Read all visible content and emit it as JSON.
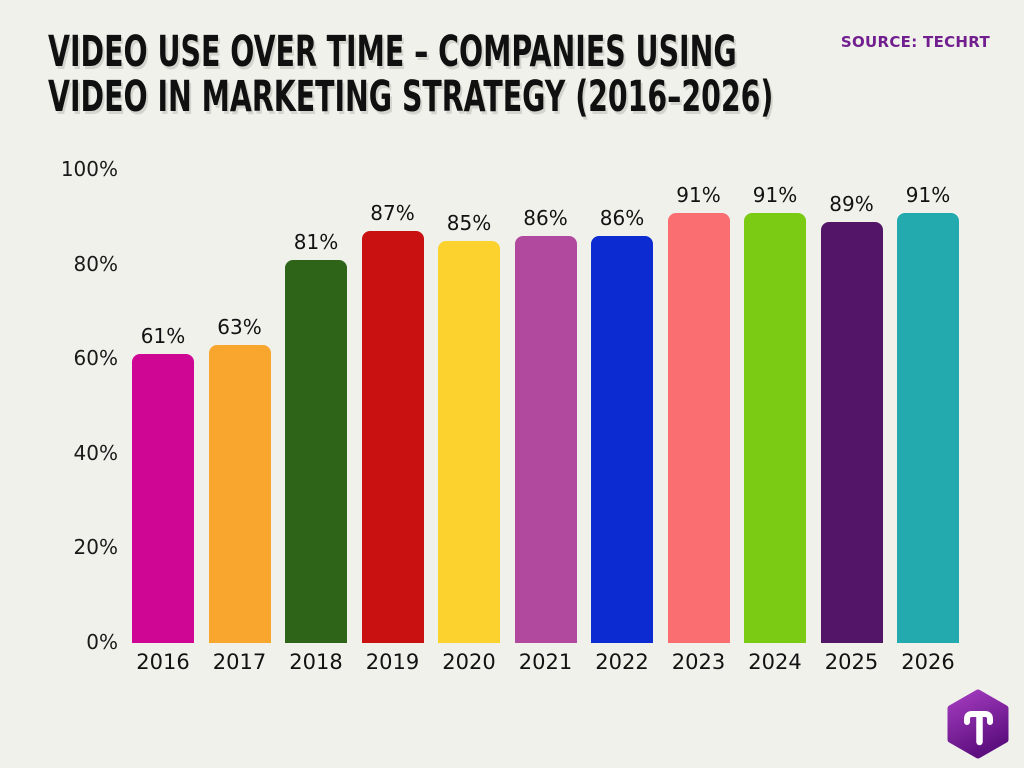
{
  "page": {
    "background": "#f1f1ec"
  },
  "header": {
    "title_line1": "VIDEO USE OVER TIME – COMPANIES USING",
    "title_line2": "VIDEO IN MARKETING STRATEGY (2016–2026)",
    "source": "SOURCE: TECHRT",
    "source_color": "#711f8f"
  },
  "chart_data": {
    "type": "bar",
    "title": "Video Use Over Time – Companies Using Video in Marketing Strategy (2016–2026)",
    "categories": [
      "2016",
      "2017",
      "2018",
      "2019",
      "2020",
      "2021",
      "2022",
      "2023",
      "2024",
      "2025",
      "2026"
    ],
    "values": [
      61,
      63,
      81,
      87,
      85,
      86,
      86,
      91,
      91,
      89,
      91
    ],
    "value_labels": [
      "61%",
      "63%",
      "81%",
      "87%",
      "85%",
      "86%",
      "86%",
      "91%",
      "91%",
      "89%",
      "91%"
    ],
    "bar_colors": [
      "#cf0694",
      "#f9a62e",
      "#2e6418",
      "#c91111",
      "#fcd22e",
      "#b14a9e",
      "#0c2bd0",
      "#fa6d70",
      "#7bcb14",
      "#521568",
      "#22aaae"
    ],
    "xlabel": "",
    "ylabel": "",
    "ylim": [
      0,
      100
    ],
    "yticks": [
      "100%",
      "80%",
      "60%",
      "40%",
      "20%",
      "0%"
    ],
    "grid": false,
    "legend": "none"
  },
  "logo": {
    "name": "techrt-hexagon-logo",
    "letter": "T",
    "gradient_top": "#a43cc0",
    "gradient_bottom": "#5f1080"
  }
}
